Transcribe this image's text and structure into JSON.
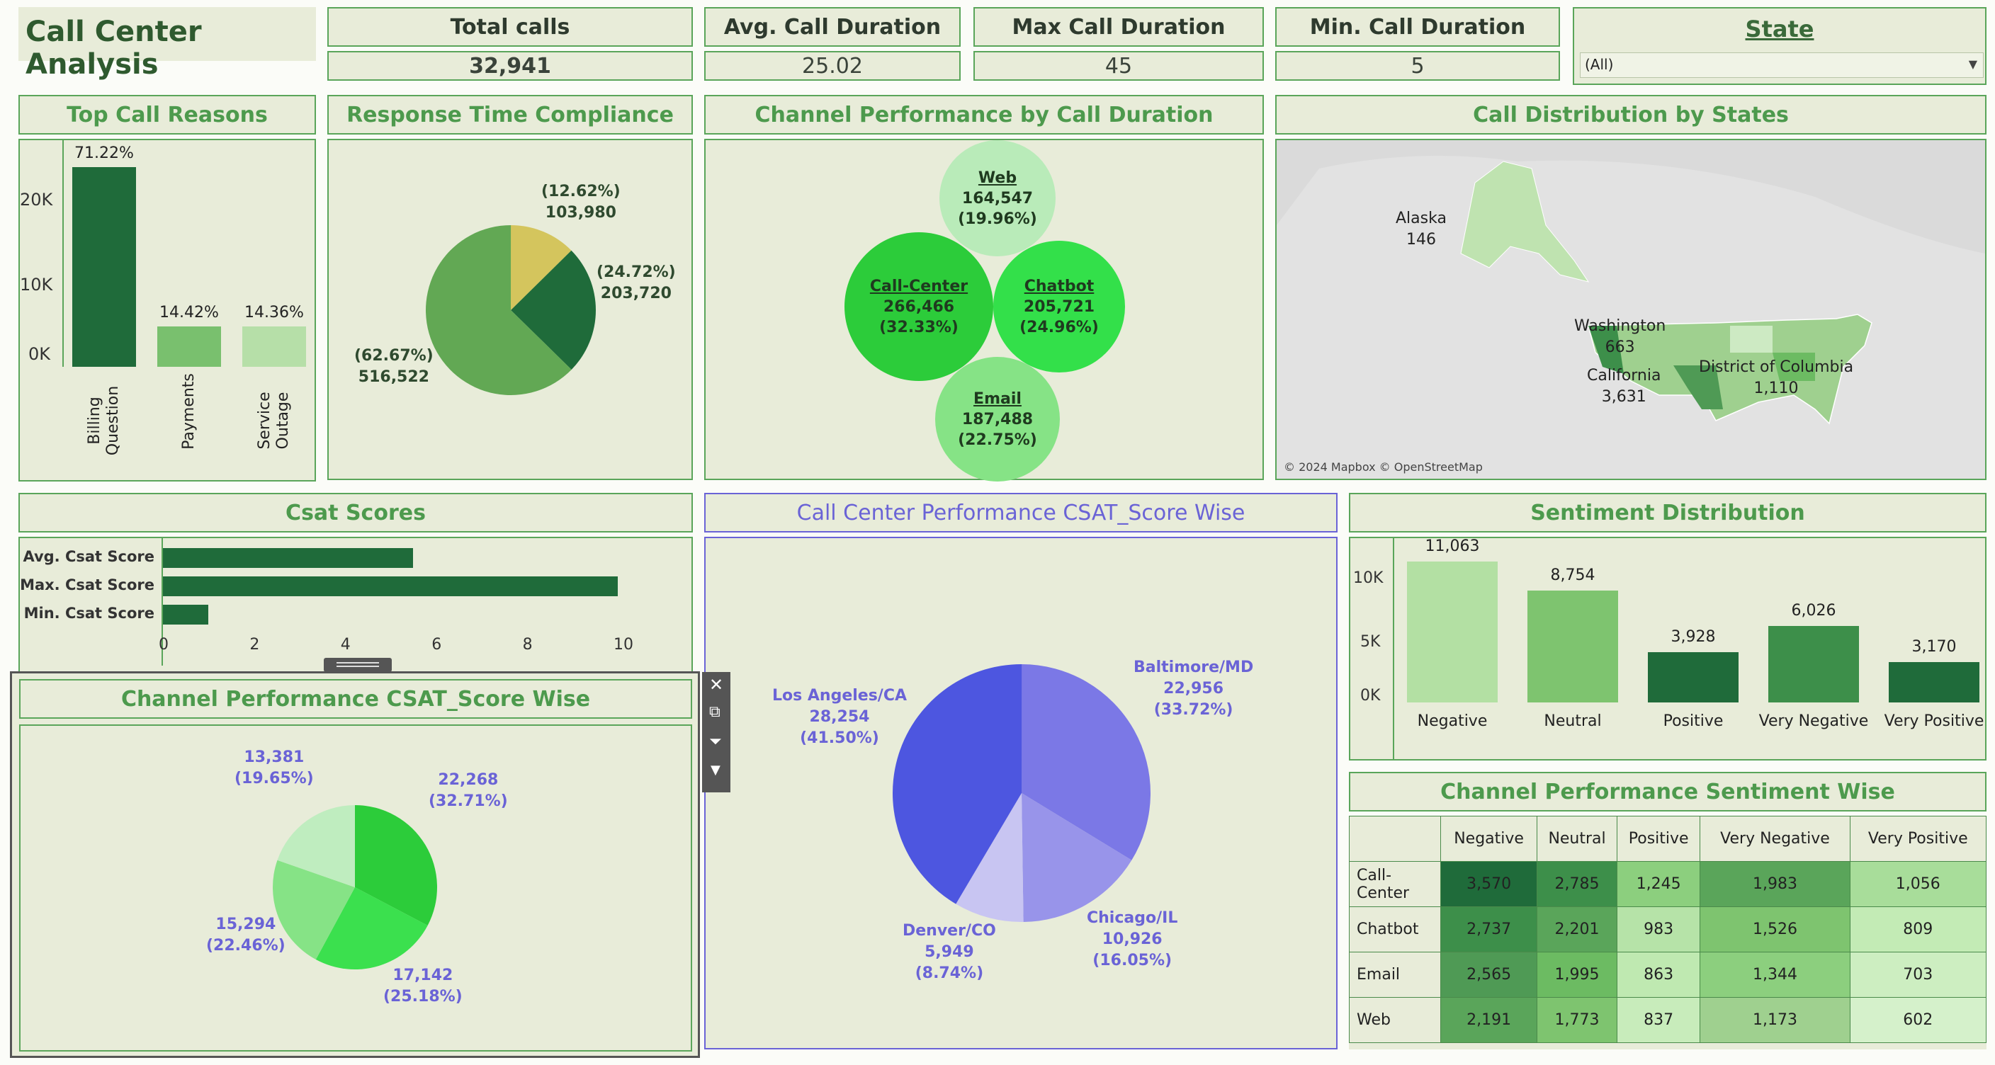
{
  "app_title": "Call Center Analysis",
  "kpis": [
    {
      "label": "Total calls",
      "value": "32,941"
    },
    {
      "label": "Avg. Call Duration",
      "value": "25.02"
    },
    {
      "label": "Max Call Duration",
      "value": "45"
    },
    {
      "label": "Min. Call Duration",
      "value": "5"
    }
  ],
  "state_filter": {
    "label": "State",
    "value": "(All)"
  },
  "top_call_reasons": {
    "title": "Top Call Reasons",
    "y_ticks": [
      "20K",
      "10K",
      "0K"
    ],
    "bars": [
      {
        "cat": "Billing\nQuestion",
        "pct": "71.22%",
        "value": 23460
      },
      {
        "cat": "Payments",
        "pct": "14.42%",
        "value": 4750
      },
      {
        "cat": "Service\nOutage",
        "pct": "14.36%",
        "value": 4730
      }
    ],
    "colors": [
      "#1f6b3a",
      "#79c06e",
      "#b6dfa8"
    ]
  },
  "response_time": {
    "title": "Response Time Compliance",
    "slices": [
      {
        "pct": "(12.62%)",
        "value": "103,980",
        "share": 12.62,
        "color": "#d4c55d"
      },
      {
        "pct": "(24.72%)",
        "value": "203,720",
        "share": 24.72,
        "color": "#1f6b3a"
      },
      {
        "pct": "(62.67%)",
        "value": "516,522",
        "share": 62.67,
        "color": "#62a854"
      }
    ]
  },
  "channel_duration": {
    "title": "Channel Performance by Call Duration",
    "bubbles": [
      {
        "name": "Web",
        "value": "164,547",
        "pct": "(19.96%)",
        "color": "#b9ebb9"
      },
      {
        "name": "Call-Center",
        "value": "266,466",
        "pct": "(32.33%)",
        "color": "#2ccc3a"
      },
      {
        "name": "Chatbot",
        "value": "205,721",
        "pct": "(24.96%)",
        "color": "#33e04a"
      },
      {
        "name": "Email",
        "value": "187,488",
        "pct": "(22.75%)",
        "color": "#86e386"
      }
    ]
  },
  "map": {
    "title": "Call Distribution by States",
    "labels": [
      {
        "name": "Alaska",
        "value": "146"
      },
      {
        "name": "Washington",
        "value": "663"
      },
      {
        "name": "California",
        "value": "3,631"
      },
      {
        "name": "District of Columbia",
        "value": "1,110"
      }
    ],
    "attribution": "© 2024 Mapbox © OpenStreetMap"
  },
  "csat_scores": {
    "title": "Csat Scores",
    "rows": [
      {
        "label": "Avg. Csat Score",
        "value": 5.5
      },
      {
        "label": "Max. Csat Score",
        "value": 10
      },
      {
        "label": "Min. Csat Score",
        "value": 1
      }
    ],
    "x_ticks": [
      "0",
      "2",
      "4",
      "6",
      "8",
      "10"
    ]
  },
  "csat_city": {
    "title": "Call Center Performance CSAT_Score Wise",
    "slices": [
      {
        "city": "Baltimore/MD",
        "value": "22,956",
        "pct": "(33.72%)",
        "share": 33.72,
        "color": "#7b78e6"
      },
      {
        "city": "Chicago/IL",
        "value": "10,926",
        "pct": "(16.05%)",
        "share": 16.05,
        "color": "#9894ea"
      },
      {
        "city": "Denver/CO",
        "value": "5,949",
        "pct": "(8.74%)",
        "share": 8.74,
        "color": "#c8c5f2"
      },
      {
        "city": "Los Angeles/CA",
        "value": "28,254",
        "pct": "(41.50%)",
        "share": 41.5,
        "color": "#4d56e0"
      }
    ]
  },
  "sentiment": {
    "title": "Sentiment Distribution",
    "y_ticks": [
      "10K",
      "5K",
      "0K"
    ],
    "bars": [
      {
        "cat": "Negative",
        "value": 11063,
        "label": "11,063",
        "color": "#b3e0a3"
      },
      {
        "cat": "Neutral",
        "value": 8754,
        "label": "8,754",
        "color": "#7ec46f"
      },
      {
        "cat": "Positive",
        "value": 3928,
        "label": "3,928",
        "color": "#1f6b3a"
      },
      {
        "cat": "Very Negative",
        "value": 6026,
        "label": "6,026",
        "color": "#3d8f4a"
      },
      {
        "cat": "Very Positive",
        "value": 3170,
        "label": "3,170",
        "color": "#1f6b3a"
      }
    ]
  },
  "sentiment_table": {
    "title": "Channel Performance Sentiment Wise",
    "columns": [
      "Negative",
      "Neutral",
      "Positive",
      "Very Negative",
      "Very Positive"
    ],
    "rows": [
      {
        "name": "Call-Center",
        "cells": [
          "3,570",
          "2,785",
          "1,245",
          "1,983",
          "1,056"
        ]
      },
      {
        "name": "Chatbot",
        "cells": [
          "2,737",
          "2,201",
          "983",
          "1,526",
          "809"
        ]
      },
      {
        "name": "Email",
        "cells": [
          "2,565",
          "1,995",
          "863",
          "1,344",
          "703"
        ]
      },
      {
        "name": "Web",
        "cells": [
          "2,191",
          "1,773",
          "837",
          "1,173",
          "602"
        ]
      }
    ]
  },
  "csat_channel": {
    "title": "Channel Performance CSAT_Score Wise",
    "slices": [
      {
        "value": "22,268",
        "pct": "(32.71%)",
        "share": 32.71,
        "color": "#2ccc3a"
      },
      {
        "value": "17,142",
        "pct": "(25.18%)",
        "share": 25.18,
        "color": "#3be04e"
      },
      {
        "value": "15,294",
        "pct": "(22.46%)",
        "share": 22.46,
        "color": "#86e386"
      },
      {
        "value": "13,381",
        "pct": "(19.65%)",
        "share": 19.65,
        "color": "#bfedbf"
      }
    ]
  }
}
